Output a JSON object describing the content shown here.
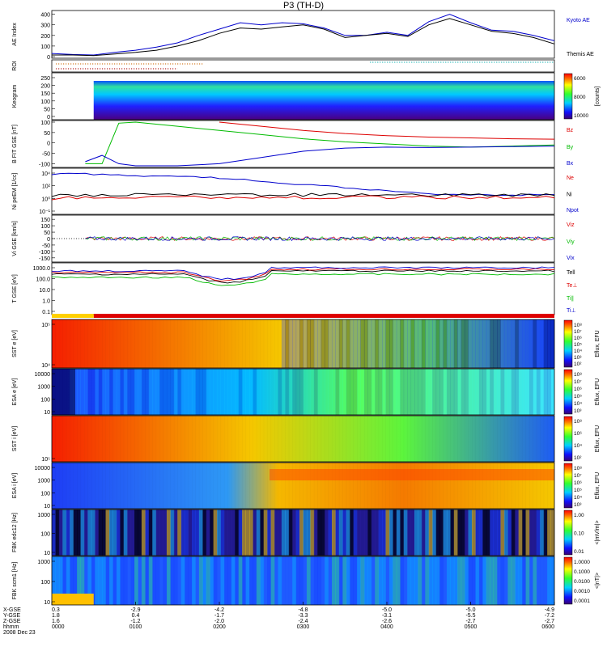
{
  "title": "P3 (TH-D)",
  "footer": {
    "labels": [
      "X-GSE",
      "Y-GSE",
      "Z-GSE",
      "hhmm",
      "2008 Dec 23"
    ],
    "columns": [
      [
        "0.3",
        "1.8",
        "1.6",
        "0000"
      ],
      [
        "-2.9",
        "0.4",
        "-1.2",
        "0100"
      ],
      [
        "-4.2",
        "-1.7",
        "-2.0",
        "0200"
      ],
      [
        "-4.8",
        "-3.3",
        "-2.4",
        "0300"
      ],
      [
        "-5.0",
        "-3.1",
        "-2.6",
        "0400"
      ],
      [
        "-5.0",
        "-5.5",
        "-2.7",
        "0500"
      ],
      [
        "-4.9",
        "-7.2",
        "-2.7",
        "0600"
      ]
    ]
  },
  "chart_data": [
    {
      "type": "line",
      "ylabel": "AE Index",
      "yticks": [
        "0",
        "100",
        "200",
        "300",
        "400"
      ],
      "ylim": [
        0,
        420
      ],
      "x_hours": [
        0,
        0.25,
        0.5,
        0.75,
        1.0,
        1.25,
        1.5,
        1.75,
        2.0,
        2.25,
        2.5,
        2.75,
        3.0,
        3.25,
        3.5,
        3.75,
        4.0,
        4.25,
        4.5,
        4.75,
        5.0,
        5.25,
        5.5,
        5.75,
        6.0
      ],
      "series": [
        {
          "name": "Kyoto AE",
          "color": "#0000cc",
          "values": [
            30,
            20,
            15,
            40,
            60,
            90,
            130,
            200,
            260,
            320,
            300,
            320,
            310,
            270,
            200,
            200,
            230,
            200,
            330,
            400,
            320,
            250,
            240,
            200,
            150
          ]
        },
        {
          "name": "Themis AE",
          "color": "#000000",
          "values": [
            15,
            15,
            10,
            25,
            40,
            60,
            100,
            150,
            220,
            270,
            260,
            280,
            300,
            260,
            180,
            200,
            220,
            190,
            300,
            360,
            300,
            240,
            220,
            180,
            120
          ]
        }
      ]
    },
    {
      "type": "line",
      "ylabel": "B FIT GSE [nT]",
      "yticks": [
        "-100",
        "-50",
        "0",
        "50",
        "100"
      ],
      "ylim": [
        -110,
        100
      ],
      "x_hours": [
        0.4,
        0.6,
        0.8,
        1.0,
        1.5,
        2.0,
        2.5,
        3.0,
        3.5,
        4.0,
        4.5,
        5.0,
        5.5,
        6.0
      ],
      "series": [
        {
          "name": "Bz",
          "color": "#dd0000",
          "values": [
            null,
            null,
            null,
            null,
            null,
            100,
            80,
            60,
            45,
            35,
            28,
            24,
            20,
            18
          ]
        },
        {
          "name": "By",
          "color": "#00bb00",
          "values": [
            -100,
            -100,
            95,
            100,
            80,
            60,
            40,
            20,
            5,
            -5,
            -15,
            -20,
            -15,
            -10
          ]
        },
        {
          "name": "Bx",
          "color": "#0000cc",
          "values": [
            -90,
            -60,
            -100,
            -110,
            -110,
            -100,
            -70,
            -40,
            -25,
            -20,
            -22,
            -20,
            -18,
            -15
          ]
        }
      ]
    },
    {
      "type": "line",
      "ylabel": "Vi GSE [km/s]",
      "yticks": [
        "-150",
        "-100",
        "-50",
        "0",
        "50",
        "100",
        "150"
      ],
      "ylim": [
        -170,
        170
      ],
      "series_names": [
        "Viz",
        "Viy",
        "Vix"
      ],
      "series_colors": [
        "#dd0000",
        "#00bb00",
        "#0000cc"
      ]
    },
    {
      "type": "line",
      "ylabel": "T GSE [eV]",
      "yticks": [
        "0.1",
        "1.0",
        "10.0",
        "100.0",
        "1000.0"
      ],
      "series_names": [
        "Tell",
        "Te⊥",
        "Ti∥",
        "Ti⊥"
      ],
      "series_colors": [
        "#000000",
        "#dd0000",
        "#00bb00",
        "#0000cc"
      ]
    }
  ],
  "panels": [
    {
      "label": "AE Index",
      "legend": [
        "Kyoto AE",
        "Themis AE"
      ],
      "legend_colors": [
        "#0000cc",
        "#000000"
      ]
    },
    {
      "label": "ROI",
      "legend": [],
      "legend_colors": []
    },
    {
      "label": "Keogram",
      "ticks": [
        "0",
        "50",
        "100",
        "150",
        "200",
        "250"
      ],
      "cbar_ticks": [
        "6000",
        "8000",
        "10000"
      ],
      "cbar_label": "[counts]"
    },
    {
      "label": "B FIT GSE [nT]",
      "legend": [
        "Bz",
        "By",
        "Bx"
      ],
      "legend_colors": [
        "#dd0000",
        "#00bb00",
        "#0000cc"
      ]
    },
    {
      "label": "Ni peEM [1/cc]",
      "ticks": [
        "10⁻¹",
        "10⁰",
        "10²",
        "10⁴"
      ],
      "legend": [
        "Ne",
        "Ni",
        "Npot"
      ],
      "legend_colors": [
        "#dd0000",
        "#000000",
        "#0000cc"
      ]
    },
    {
      "label": "Vi GSE [km/s]",
      "legend": [
        "Viz",
        "Viy",
        "Vix"
      ],
      "legend_colors": [
        "#dd0000",
        "#00bb00",
        "#0000cc"
      ]
    },
    {
      "label": "T GSE [eV]",
      "legend": [
        "Tell",
        "Te⊥",
        "Ti∥",
        "Ti⊥"
      ],
      "legend_colors": [
        "#000000",
        "#dd0000",
        "#00bb00",
        "#0000cc"
      ]
    },
    {
      "label": "SST e [eV]",
      "ticks": [
        "10⁴",
        "10⁵"
      ],
      "cbar_ticks": [
        "10⁸",
        "10⁷",
        "10⁶",
        "10⁵",
        "10⁴",
        "10³",
        "10²"
      ],
      "cbar_label": "Eflux, EFU"
    },
    {
      "label": "ESA e [eV]",
      "ticks": [
        "10",
        "100",
        "1000",
        "10000"
      ],
      "cbar_ticks": [
        "10⁸",
        "10⁷",
        "10⁶",
        "10⁵",
        "10⁴",
        "10³"
      ],
      "cbar_label": "Eflux, EFU"
    },
    {
      "label": "SST i [eV]",
      "ticks": [
        "10⁵"
      ],
      "cbar_ticks": [
        "10⁸",
        "10⁶",
        "10⁴",
        "10²"
      ],
      "cbar_label": "Eflux, EFU"
    },
    {
      "label": "ESA i [eV]",
      "ticks": [
        "10",
        "100",
        "1000",
        "10000"
      ],
      "cbar_ticks": [
        "10⁸",
        "10⁷",
        "10⁶",
        "10⁵",
        "10⁴",
        "10³"
      ],
      "cbar_label": "Eflux, EFU"
    },
    {
      "label": "FBK edc12 [Hz]",
      "ticks": [
        "10",
        "100",
        "1000"
      ],
      "cbar_ticks": [
        "1.00",
        "0.10",
        "0.01"
      ],
      "cbar_label": "<|mV/m|>"
    },
    {
      "label": "FBK scm1 [Hz]",
      "ticks": [
        "10",
        "100",
        "1000"
      ],
      "cbar_ticks": [
        "1.0000",
        "0.1000",
        "0.0100",
        "0.0010",
        "0.0001"
      ],
      "cbar_label": "<|nT|>"
    }
  ]
}
